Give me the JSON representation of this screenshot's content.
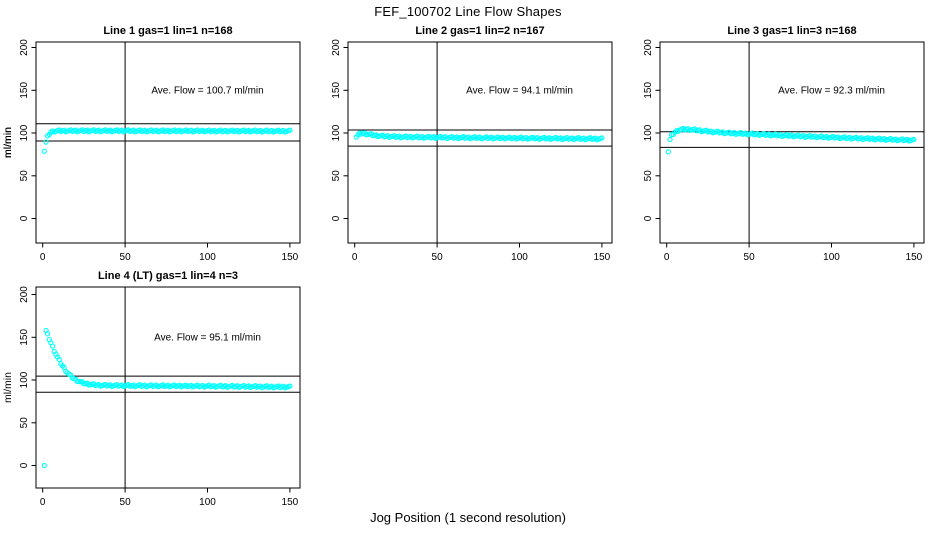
{
  "figure": {
    "title": "FEF_100702  Line Flow Shapes",
    "xlabel": "Jog Position (1 second resolution)",
    "ylabel": "ml/min",
    "marker_color": "#00FFFF",
    "axis_color": "#000000",
    "background": "#FFFFFF"
  },
  "chart_data": [
    {
      "type": "scatter",
      "title": "Line 1 gas=1 lin=1 n=168",
      "line": 1,
      "gas": 1,
      "lin": 1,
      "n": 168,
      "annotation": "Ave. Flow =  100.7  ml/min",
      "ave_flow_ml_min": 100.7,
      "ylabel": "ml/min",
      "x_ticks": [
        0,
        50,
        100,
        150
      ],
      "y_ticks": [
        0,
        50,
        100,
        150,
        200
      ],
      "xlim": [
        -5,
        156
      ],
      "ylim": [
        -28,
        209
      ],
      "ref_vline_x": 50,
      "ref_hlines": [
        110.8,
        90.6
      ],
      "x_start": 1,
      "x_end": 150,
      "x_step": 1,
      "anchors": [
        [
          1,
          79
        ],
        [
          2,
          89
        ],
        [
          3,
          95.5
        ],
        [
          4,
          99
        ],
        [
          5,
          101
        ],
        [
          7,
          102.2
        ],
        [
          10,
          102.5
        ],
        [
          30,
          102.6
        ],
        [
          60,
          102.5
        ],
        [
          100,
          102.4
        ],
        [
          150,
          102.2
        ]
      ],
      "outliers": []
    },
    {
      "type": "scatter",
      "title": "Line 2 gas=1 lin=2 n=167",
      "line": 2,
      "gas": 1,
      "lin": 2,
      "n": 167,
      "annotation": "Ave. Flow =  94.1  ml/min",
      "ave_flow_ml_min": 94.1,
      "ylabel": "ml/min",
      "x_ticks": [
        0,
        50,
        100,
        150
      ],
      "y_ticks": [
        0,
        50,
        100,
        150,
        200
      ],
      "xlim": [
        -5,
        156
      ],
      "ylim": [
        -28,
        209
      ],
      "ref_vline_x": 50,
      "ref_hlines": [
        103.5,
        84.7
      ],
      "x_start": 1,
      "x_end": 150,
      "x_step": 1,
      "anchors": [
        [
          1,
          95.5
        ],
        [
          2,
          97.5
        ],
        [
          3,
          99
        ],
        [
          5,
          99.8
        ],
        [
          8,
          98.7
        ],
        [
          12,
          97.3
        ],
        [
          18,
          96.2
        ],
        [
          25,
          95.6
        ],
        [
          40,
          95.1
        ],
        [
          60,
          94.7
        ],
        [
          90,
          94.2
        ],
        [
          120,
          93.7
        ],
        [
          150,
          93.2
        ]
      ],
      "outliers": []
    },
    {
      "type": "scatter",
      "title": "Line 3 gas=1 lin=3 n=168",
      "line": 3,
      "gas": 1,
      "lin": 3,
      "n": 168,
      "annotation": "Ave. Flow =  92.3  ml/min",
      "ave_flow_ml_min": 92.3,
      "ylabel": "ml/min",
      "x_ticks": [
        0,
        50,
        100,
        150
      ],
      "y_ticks": [
        0,
        50,
        100,
        150,
        200
      ],
      "xlim": [
        -5,
        156
      ],
      "ylim": [
        -28,
        209
      ],
      "ref_vline_x": 50,
      "ref_hlines": [
        101.5,
        83.1
      ],
      "x_start": 2,
      "x_end": 150,
      "x_step": 1,
      "anchors": [
        [
          2,
          92
        ],
        [
          3,
          97
        ],
        [
          5,
          101
        ],
        [
          8,
          104
        ],
        [
          12,
          104.5
        ],
        [
          16,
          103.8
        ],
        [
          22,
          102.5
        ],
        [
          30,
          101
        ],
        [
          40,
          99.8
        ],
        [
          55,
          98.4
        ],
        [
          70,
          97.2
        ],
        [
          90,
          95.7
        ],
        [
          110,
          94.2
        ],
        [
          130,
          92.8
        ],
        [
          150,
          91.5
        ]
      ],
      "outliers": [
        [
          1,
          78
        ]
      ]
    },
    {
      "type": "scatter",
      "title": "Line 4 (LT) gas=1 lin=4 n=3",
      "line": 4,
      "gas": 1,
      "lin": 4,
      "n": 3,
      "annotation": "Ave. Flow =  95.1  ml/min",
      "ave_flow_ml_min": 95.1,
      "ylabel": "ml/min",
      "x_ticks": [
        0,
        50,
        100,
        150
      ],
      "y_ticks": [
        0,
        50,
        100,
        150,
        200
      ],
      "xlim": [
        -5,
        156
      ],
      "ylim": [
        -28,
        209
      ],
      "ref_vline_x": 50,
      "ref_hlines": [
        104.6,
        85.6
      ],
      "x_start": 2,
      "x_end": 150,
      "x_step": 1,
      "anchors": [
        [
          2,
          157.5
        ],
        [
          3,
          153
        ],
        [
          4,
          148
        ],
        [
          5,
          143.5
        ],
        [
          6,
          139
        ],
        [
          7,
          134.5
        ],
        [
          8,
          130.5
        ],
        [
          9,
          126.5
        ],
        [
          10,
          123
        ],
        [
          12,
          116.5
        ],
        [
          14,
          111
        ],
        [
          16,
          106.5
        ],
        [
          18,
          103
        ],
        [
          20,
          100.3
        ],
        [
          23,
          97.5
        ],
        [
          26,
          95.8
        ],
        [
          30,
          94.6
        ],
        [
          35,
          93.9
        ],
        [
          40,
          93.6
        ],
        [
          60,
          93.3
        ],
        [
          90,
          93
        ],
        [
          120,
          92.5
        ],
        [
          150,
          91.8
        ]
      ],
      "outliers": [
        [
          1,
          0
        ]
      ]
    }
  ]
}
